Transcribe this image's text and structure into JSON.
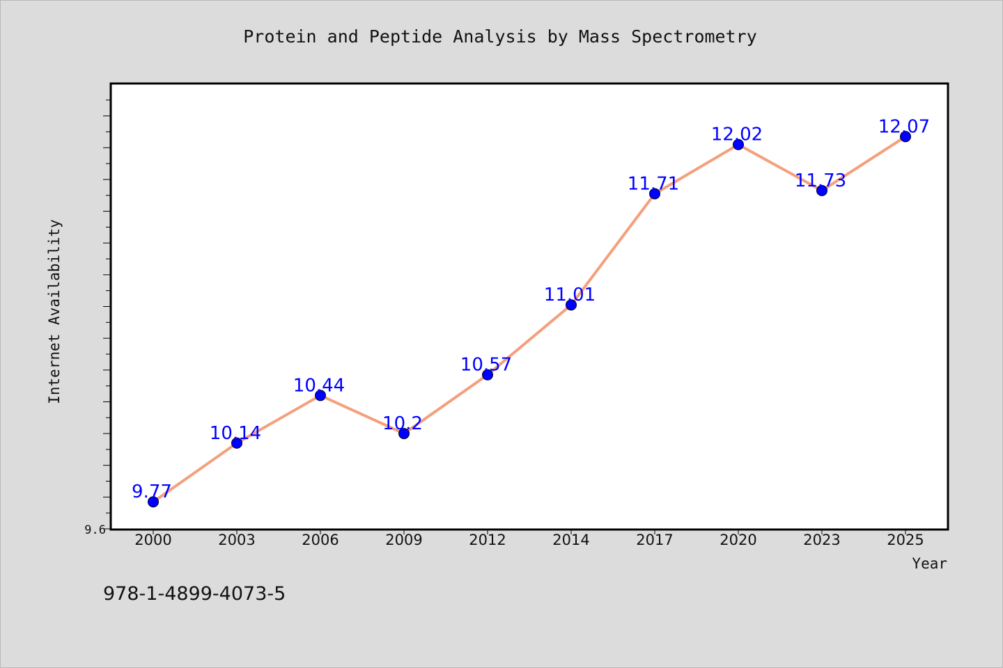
{
  "chart_data": {
    "type": "line",
    "title": "Protein and Peptide Analysis by Mass Spectrometry",
    "xlabel": "Year",
    "ylabel": "Internet Availability",
    "categories": [
      "2000",
      "2003",
      "2006",
      "2009",
      "2012",
      "2014",
      "2017",
      "2020",
      "2023",
      "2025"
    ],
    "series": [
      {
        "values": [
          9.77,
          10.14,
          10.44,
          10.2,
          10.57,
          11.01,
          11.71,
          12.02,
          11.73,
          12.07
        ]
      }
    ],
    "data_labels": [
      "9.77",
      "10.14",
      "10.44",
      "10.2",
      "10.57",
      "11.01",
      "11.71",
      "12.02",
      "11.73",
      "12.07"
    ],
    "ylim": [
      9.6,
      12.4
    ],
    "y_tick_label": "9.6",
    "grid": false,
    "line_color": "#f4a07c",
    "marker_color": "#0000ff",
    "label_color": "#0000ff",
    "plot_background": "#ffffff",
    "page_background": "#dcdcdc"
  },
  "footer": {
    "isbn": "978-1-4899-4073-5"
  }
}
